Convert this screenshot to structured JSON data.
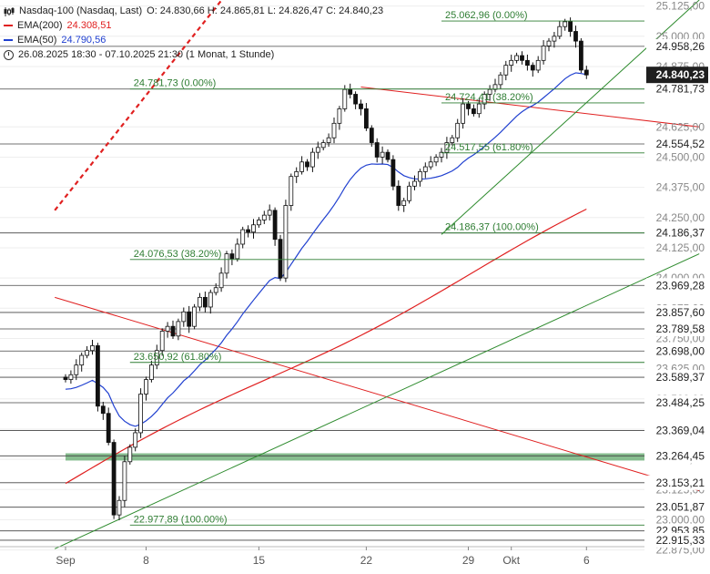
{
  "header": {
    "instrument": "Nasdaq-100 (Nasdaq, Last)",
    "ohlc": "O: 24.830,66  H: 24.865,81  L: 24.826,47  C: 24.840,23",
    "ema200_label": "EMA(200)",
    "ema200_value": "24.308,51",
    "ema50_label": "EMA(50)",
    "ema50_value": "24.790,56",
    "range": "26.08.2025 18:30 - 07.10.2025 21:30   (1 Monat, 1 Stunde)"
  },
  "colors": {
    "ema200": "#e02020",
    "ema50": "#2040d0",
    "fib": "#2e7d32",
    "trend_red": "#e02020",
    "trend_green": "#2e8b2e",
    "support_zone": "#5fa86a",
    "price_box": "#1f1f1f",
    "bg": "#ffffff"
  },
  "chart_data": {
    "type": "candlestick",
    "y_range": [
      22900,
      25150
    ],
    "y_tick_labels": [
      "25.125,00",
      "25.000,00",
      "24.875,00",
      "24.625,00",
      "24.500,00",
      "24.375,00",
      "24.250,00",
      "24.125,00",
      "24.000,00",
      "23.875,00",
      "23.750,00",
      "23.625,00",
      "23.500,00",
      "23.375,00",
      "23.250,00",
      "23.125,00",
      "23.000,00",
      "22.875,00"
    ],
    "y_ticks": [
      25125,
      25000,
      24875,
      24625,
      24500,
      24375,
      24250,
      24125,
      24000,
      23875,
      23750,
      23625,
      23500,
      23375,
      23250,
      23125,
      23000,
      22875
    ],
    "x_tick_labels": [
      "Sep",
      "8",
      "15",
      "22",
      "29",
      "Okt",
      "6"
    ],
    "x_tick_bar": [
      0,
      15,
      36,
      56,
      75,
      83,
      97
    ],
    "current_price": {
      "value": 24840.23,
      "label": "24.840,23"
    },
    "price_levels": [
      {
        "value": 24958.26,
        "label": "24.958,26"
      },
      {
        "value": 24781.73,
        "label": "24.781,73"
      },
      {
        "value": 24554.52,
        "label": "24.554,52"
      },
      {
        "value": 24186.37,
        "label": "24.186,37"
      },
      {
        "value": 23969.28,
        "label": "23.969,28"
      },
      {
        "value": 23857.6,
        "label": "23.857,60"
      },
      {
        "value": 23789.58,
        "label": "23.789,58"
      },
      {
        "value": 23698.0,
        "label": "23.698,00"
      },
      {
        "value": 23589.37,
        "label": "23.589,37"
      },
      {
        "value": 23484.25,
        "label": "23.484,25"
      },
      {
        "value": 23369.04,
        "label": "23.369,04"
      },
      {
        "value": 23264.45,
        "label": "23.264,45"
      },
      {
        "value": 23153.21,
        "label": "23.153,21"
      },
      {
        "value": 23051.87,
        "label": "23.051,87"
      },
      {
        "value": 22953.85,
        "label": "22.953,85"
      },
      {
        "value": 22915.33,
        "label": "22.915,33"
      }
    ],
    "fib_labels": [
      {
        "value": 25062.96,
        "label": "25.062,96 (0.00%)",
        "bar": 70
      },
      {
        "value": 24781.73,
        "label": "24.781,73 (0.00%)",
        "bar": 12
      },
      {
        "value": 24724.41,
        "label": "24.724,41 (38.20%)",
        "bar": 70
      },
      {
        "value": 24517.55,
        "label": "24.517,55 (61.80%)",
        "bar": 70
      },
      {
        "value": 24186.37,
        "label": "24.186,37 (100.00%)",
        "bar": 70
      },
      {
        "value": 24076.53,
        "label": "24.076,53 (38.20%)",
        "bar": 12
      },
      {
        "value": 23650.92,
        "label": "23.650,92 (61.80%)",
        "bar": 12
      },
      {
        "value": 22977.89,
        "label": "22.977,89 (100.00%)",
        "bar": 12
      }
    ],
    "support_zone": [
      23245,
      23275
    ],
    "trendlines": [
      {
        "kind": "red-dashed",
        "from": [
          -2,
          24280
        ],
        "to": [
          63,
          26100
        ]
      },
      {
        "kind": "red",
        "from": [
          -2,
          23920
        ],
        "to": [
          118,
          23120
        ]
      },
      {
        "kind": "red",
        "from": [
          55,
          24790
        ],
        "to": [
          118,
          24625
        ]
      },
      {
        "kind": "green",
        "from": [
          -2,
          22880
        ],
        "to": [
          118,
          24100
        ]
      },
      {
        "kind": "green",
        "from": [
          70,
          24180
        ],
        "to": [
          118,
          25150
        ]
      }
    ],
    "closes": [
      23580,
      23600,
      23640,
      23680,
      23700,
      23720,
      23470,
      23440,
      23320,
      23020,
      23080,
      23240,
      23300,
      23360,
      23520,
      23580,
      23640,
      23700,
      23780,
      23800,
      23760,
      23820,
      23860,
      23800,
      23880,
      23920,
      23880,
      23940,
      23960,
      24020,
      24100,
      24080,
      24140,
      24200,
      24190,
      24220,
      24240,
      24260,
      24280,
      24160,
      24000,
      24300,
      24420,
      24440,
      24480,
      24460,
      24520,
      24540,
      24560,
      24580,
      24640,
      24700,
      24780,
      24760,
      24720,
      24700,
      24620,
      24560,
      24500,
      24520,
      24490,
      24380,
      24300,
      24320,
      24380,
      24400,
      24440,
      24460,
      24480,
      24500,
      24520,
      24560,
      24580,
      24640,
      24720,
      24700,
      24680,
      24720,
      24760,
      24780,
      24800,
      24840,
      24880,
      24900,
      24920,
      24900,
      24880,
      24860,
      24900,
      24960,
      24980,
      25000,
      25040,
      25060,
      25020,
      24980,
      24860,
      24840
    ]
  }
}
